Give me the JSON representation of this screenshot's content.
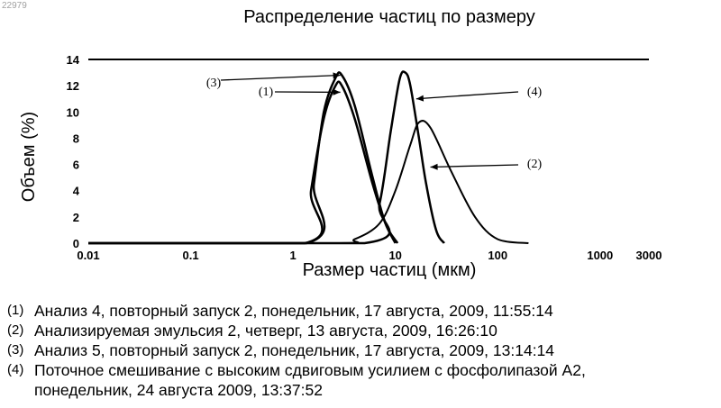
{
  "stamp": "22979",
  "chart_data": {
    "type": "line",
    "title": "Распределение частиц по размеру",
    "xlabel": "Размер частиц (мкм)",
    "ylabel": "Объем (%)",
    "xscale": "log",
    "xlim": [
      0.01,
      3000
    ],
    "ylim": [
      0,
      14
    ],
    "grid": false,
    "x_ticks": [
      "0.01",
      "0.1",
      "1",
      "10",
      "100",
      "1000",
      "3000"
    ],
    "y_ticks": [
      "0",
      "2",
      "4",
      "6",
      "8",
      "10",
      "12",
      "14"
    ],
    "series": [
      {
        "name": "(1)",
        "x": [
          0.01,
          1.3,
          1.5,
          2.0,
          2.6,
          3.0,
          4.0,
          6.0,
          8.0,
          10.0,
          0.01
        ],
        "y": [
          0,
          0,
          4.0,
          9.5,
          12.0,
          12.0,
          9.5,
          4.5,
          1.5,
          0,
          0
        ],
        "label": "(1)"
      },
      {
        "name": "(2)",
        "x": [
          0.01,
          2.5,
          4.0,
          7.0,
          10.0,
          14.0,
          17.0,
          22.0,
          35.0,
          60.0,
          100.0,
          200.0
        ],
        "y": [
          0,
          0,
          0.3,
          1.5,
          4.0,
          7.5,
          9.2,
          8.8,
          5.5,
          2.0,
          0.3,
          0
        ],
        "label": "(2)"
      },
      {
        "name": "(3)",
        "x": [
          0.01,
          1.35,
          1.6,
          2.0,
          2.6,
          3.0,
          4.0,
          6.0,
          8.0,
          10.5
        ],
        "y": [
          0,
          0,
          4.5,
          10.0,
          12.6,
          12.8,
          10.5,
          5.0,
          1.5,
          0
        ],
        "label": "(3)"
      },
      {
        "name": "(4)",
        "x": [
          0.01,
          5.0,
          7.0,
          9.0,
          11.0,
          12.5,
          14.0,
          17.0,
          20.0,
          25.0,
          30.0
        ],
        "y": [
          0,
          0,
          3.0,
          8.5,
          12.5,
          13.0,
          12.0,
          8.0,
          4.5,
          1.0,
          0
        ],
        "label": "(4)"
      }
    ],
    "callouts": [
      {
        "label": "(3)",
        "target_x": 2.9,
        "target_y": 12.8
      },
      {
        "label": "(1)",
        "target_x": 2.9,
        "target_y": 11.5
      },
      {
        "label": "(4)",
        "target_x": 16.0,
        "target_y": 11.0
      },
      {
        "label": "(2)",
        "target_x": 22.0,
        "target_y": 5.8
      }
    ]
  },
  "legend": [
    {
      "num": "(1)",
      "text": "Анализ 4, повторный запуск 2, понедельник, 17 августа, 2009, 11:55:14"
    },
    {
      "num": "(2)",
      "text": "Анализируемая эмульсия 2, четверг, 13 августа, 2009, 16:26:10"
    },
    {
      "num": "(3)",
      "text": "Анализ 5, повторный запуск 2, понедельник, 17 августа, 2009, 13:14:14"
    },
    {
      "num": "(4)",
      "text": "Поточное смешивание с высоким сдвиговым усилием с фосфолипазой А2,",
      "continuation": "понедельник, 24 августа 2009, 13:37:52"
    }
  ]
}
